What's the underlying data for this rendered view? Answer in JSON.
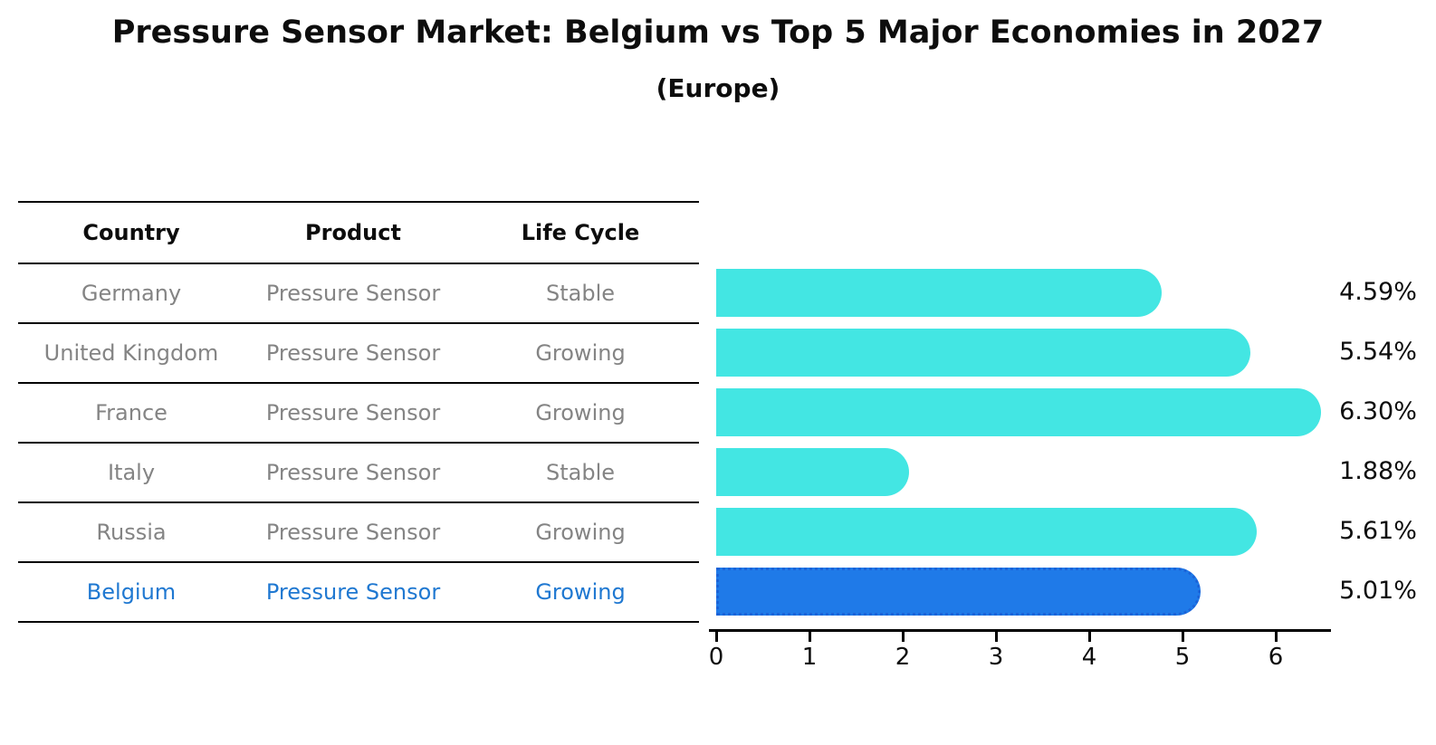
{
  "title": "Pressure Sensor Market: Belgium vs Top 5 Major Economies in 2027",
  "subtitle": "(Europe)",
  "colors": {
    "bar_default": "#43E6E3",
    "bar_highlight": "#1F7AE8",
    "bar_highlight_border": "#1B63D8",
    "highlight_text": "#1F78D1",
    "table_text": "#848484",
    "axis_text": "#0D0D0D"
  },
  "table": {
    "headers": [
      "Country",
      "Product",
      "Life Cycle"
    ],
    "rows": [
      {
        "country": "Germany",
        "product": "Pressure Sensor",
        "life_cycle": "Stable",
        "highlight": false
      },
      {
        "country": "United Kingdom",
        "product": "Pressure Sensor",
        "life_cycle": "Growing",
        "highlight": false
      },
      {
        "country": "France",
        "product": "Pressure Sensor",
        "life_cycle": "Growing",
        "highlight": false
      },
      {
        "country": "Italy",
        "product": "Pressure Sensor",
        "life_cycle": "Stable",
        "highlight": false
      },
      {
        "country": "Russia",
        "product": "Pressure Sensor",
        "life_cycle": "Growing",
        "highlight": false
      },
      {
        "country": "Belgium",
        "product": "Pressure Sensor",
        "life_cycle": "Growing",
        "highlight": true
      }
    ]
  },
  "chart_data": {
    "type": "bar",
    "orientation": "horizontal",
    "title": "Pressure Sensor Market: Belgium vs Top 5 Major Economies in 2027 (Europe)",
    "categories": [
      "Germany",
      "United Kingdom",
      "France",
      "Italy",
      "Russia",
      "Belgium"
    ],
    "values": [
      4.59,
      5.54,
      6.3,
      1.88,
      5.61,
      5.01
    ],
    "value_labels": [
      "4.59%",
      "5.54%",
      "6.30%",
      "1.88%",
      "5.61%",
      "5.01%"
    ],
    "highlight_category": "Belgium",
    "xlabel": "",
    "ylabel": "",
    "xlim": [
      0,
      6.6
    ],
    "x_ticks": [
      0,
      1,
      2,
      3,
      4,
      5,
      6
    ],
    "grid": false,
    "legend": false
  }
}
